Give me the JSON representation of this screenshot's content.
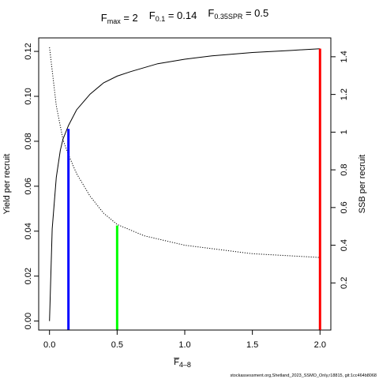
{
  "chart_data": {
    "type": "line",
    "title": {
      "items": [
        {
          "symbol": "F",
          "subscript": "max",
          "value": "= 2"
        },
        {
          "symbol": "F",
          "subscript": "0.1",
          "value": "= 0.14"
        },
        {
          "symbol": "F",
          "subscript": "0.35SPR",
          "value": "= 0.5"
        }
      ]
    },
    "xlabel": {
      "text": "F",
      "subscript": "4–8"
    },
    "ylabel": "Yield per recruit",
    "y2label": "SSB per recruit",
    "xlim": [
      -0.08,
      2.08
    ],
    "ylim": [
      -0.004,
      0.126
    ],
    "y2lim": [
      -0.05,
      1.5
    ],
    "x_ticks": [
      {
        "value": 0.0,
        "label": "0.0"
      },
      {
        "value": 0.5,
        "label": "0.5"
      },
      {
        "value": 1.0,
        "label": "1.0"
      },
      {
        "value": 1.5,
        "label": "1.5"
      },
      {
        "value": 2.0,
        "label": "2.0"
      }
    ],
    "y_ticks": [
      {
        "value": 0.0,
        "label": "0.00"
      },
      {
        "value": 0.02,
        "label": "0.02"
      },
      {
        "value": 0.04,
        "label": "0.04"
      },
      {
        "value": 0.06,
        "label": "0.06"
      },
      {
        "value": 0.08,
        "label": "0.08"
      },
      {
        "value": 0.1,
        "label": "0.10"
      },
      {
        "value": 0.12,
        "label": "0.12"
      }
    ],
    "y2_ticks": [
      {
        "value": 0.2,
        "label": "0.2"
      },
      {
        "value": 0.4,
        "label": "0.4"
      },
      {
        "value": 0.6,
        "label": "0.6"
      },
      {
        "value": 0.8,
        "label": "0.8"
      },
      {
        "value": 1.0,
        "label": "1"
      },
      {
        "value": 1.2,
        "label": "1.2"
      },
      {
        "value": 1.4,
        "label": "1.4"
      }
    ],
    "series": [
      {
        "axis": "left",
        "style": "solid",
        "color": "#000000",
        "x": [
          0,
          0.02,
          0.05,
          0.08,
          0.1,
          0.14,
          0.2,
          0.3,
          0.4,
          0.5,
          0.6,
          0.8,
          1.0,
          1.2,
          1.5,
          1.8,
          2.0
        ],
        "y": [
          0.0,
          0.041,
          0.064,
          0.076,
          0.081,
          0.087,
          0.094,
          0.101,
          0.106,
          0.109,
          0.111,
          0.1145,
          0.1165,
          0.118,
          0.1195,
          0.1205,
          0.1212
        ]
      },
      {
        "axis": "right",
        "style": "dotted",
        "color": "#000000",
        "x": [
          0,
          0.05,
          0.1,
          0.14,
          0.2,
          0.3,
          0.4,
          0.5,
          0.7,
          1.0,
          1.5,
          2.0
        ],
        "y": [
          1.45,
          1.14,
          0.96,
          0.88,
          0.78,
          0.66,
          0.57,
          0.51,
          0.45,
          0.4,
          0.355,
          0.335
        ]
      }
    ],
    "reference_lines": [
      {
        "x": 0.14,
        "y_top": 0.0855,
        "color": "#0000ff"
      },
      {
        "x": 0.5,
        "y_top": 0.0425,
        "color": "#00ff00"
      },
      {
        "x": 2.0,
        "y_top": 0.1212,
        "color": "#ff0000"
      }
    ],
    "footnote": "stockassessment.org,Shetland_2023_SSMO_Only,r18815, git:1cc464b8068"
  }
}
